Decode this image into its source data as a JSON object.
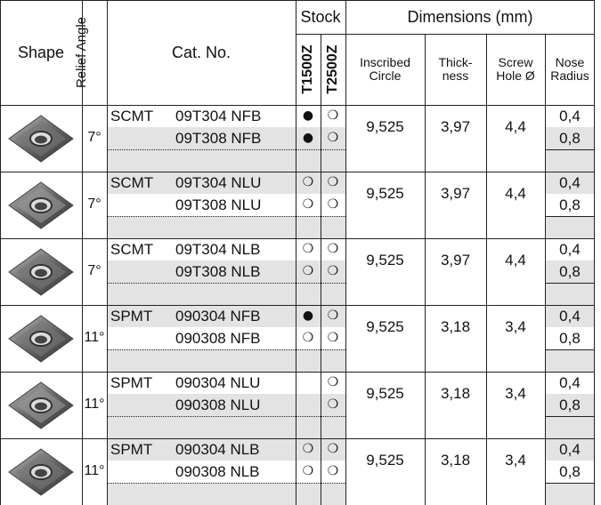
{
  "header": {
    "shape": "Shape",
    "relief_angle": "Relief Angle",
    "cat_no": "Cat. No.",
    "stock": "Stock",
    "grades": [
      "T1500Z",
      "T2500Z"
    ],
    "dimensions": "Dimensions (mm)",
    "dim_cols": [
      "Inscribed\nCircle",
      "Thick-\nness",
      "Screw\nHole Ø",
      "Nose\nRadius"
    ]
  },
  "groups": [
    {
      "relief": "7°",
      "inscribed": "9,525",
      "thickness": "3,97",
      "screw_hole": "4,4",
      "rows": [
        {
          "prefix": "SCMT",
          "code": "09T304 NFB",
          "stock": [
            "●",
            "❍"
          ],
          "nose": "0,4"
        },
        {
          "code": "09T308 NFB",
          "stock": [
            "●",
            "❍"
          ],
          "nose": "0,8"
        }
      ]
    },
    {
      "relief": "7°",
      "inscribed": "9,525",
      "thickness": "3,97",
      "screw_hole": "4,4",
      "rows": [
        {
          "prefix": "SCMT",
          "code": "09T304 NLU",
          "stock": [
            "❍",
            "❍"
          ],
          "nose": "0,4"
        },
        {
          "code": "09T308 NLU",
          "stock": [
            "❍",
            "❍"
          ],
          "nose": "0,8"
        }
      ]
    },
    {
      "relief": "7°",
      "inscribed": "9,525",
      "thickness": "3,97",
      "screw_hole": "4,4",
      "rows": [
        {
          "prefix": "SCMT",
          "code": "09T304 NLB",
          "stock": [
            "❍",
            "❍"
          ],
          "nose": "0,4"
        },
        {
          "code": "09T308 NLB",
          "stock": [
            "❍",
            "❍"
          ],
          "nose": "0,8"
        }
      ]
    },
    {
      "relief": "11°",
      "inscribed": "9,525",
      "thickness": "3,18",
      "screw_hole": "3,4",
      "rows": [
        {
          "prefix": "SPMT",
          "code": "090304 NFB",
          "stock": [
            "●",
            "❍"
          ],
          "nose": "0,4"
        },
        {
          "code": "090308 NFB",
          "stock": [
            "❍",
            "❍"
          ],
          "nose": "0,8"
        }
      ]
    },
    {
      "relief": "11°",
      "inscribed": "9,525",
      "thickness": "3,18",
      "screw_hole": "3,4",
      "rows": [
        {
          "prefix": "SPMT",
          "code": "090304 NLU",
          "stock": [
            null,
            "❍"
          ],
          "nose": "0,4"
        },
        {
          "code": "090308 NLU",
          "stock": [
            null,
            "❍"
          ],
          "nose": "0,8"
        }
      ]
    },
    {
      "relief": "11°",
      "inscribed": "9,525",
      "thickness": "3,18",
      "screw_hole": "3,4",
      "rows": [
        {
          "prefix": "SPMT",
          "code": "090304 NLB",
          "stock": [
            "❍",
            "❍"
          ],
          "nose": "0,4"
        },
        {
          "code": "090308 NLB",
          "stock": [
            "❍",
            "❍"
          ],
          "nose": "0,8"
        }
      ]
    }
  ]
}
